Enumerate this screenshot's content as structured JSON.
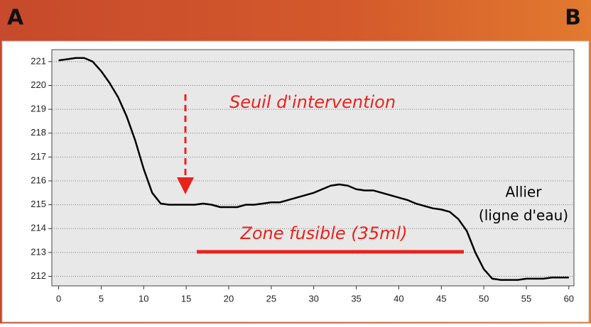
{
  "chart_data": {
    "type": "line",
    "corner_labels": [
      "A",
      "B"
    ],
    "annotations": [
      "Seuil d'intervention",
      "Zone fusible (35ml)",
      "Allier",
      "(ligne d'eau)"
    ],
    "x": [
      0,
      1,
      2,
      3,
      4,
      5,
      6,
      7,
      8,
      9,
      10,
      11,
      12,
      13,
      14,
      15,
      16,
      17,
      18,
      19,
      20,
      21,
      22,
      23,
      24,
      25,
      26,
      27,
      28,
      29,
      30,
      31,
      32,
      33,
      34,
      35,
      36,
      37,
      38,
      39,
      40,
      41,
      42,
      43,
      44,
      45,
      46,
      47,
      48,
      49,
      50,
      51,
      52,
      53,
      54,
      55,
      56,
      57,
      58,
      59,
      60
    ],
    "values": [
      221.05,
      221.1,
      221.15,
      221.15,
      221.0,
      220.6,
      220.1,
      219.5,
      218.7,
      217.7,
      216.5,
      215.5,
      215.05,
      215.0,
      215.0,
      215.0,
      215.0,
      215.05,
      215.0,
      214.9,
      214.9,
      214.9,
      215.0,
      215.0,
      215.05,
      215.1,
      215.1,
      215.2,
      215.3,
      215.4,
      215.5,
      215.65,
      215.8,
      215.85,
      215.8,
      215.65,
      215.6,
      215.6,
      215.5,
      215.4,
      215.3,
      215.2,
      215.05,
      214.95,
      214.85,
      214.8,
      214.7,
      214.4,
      213.9,
      213.0,
      212.3,
      211.9,
      211.85,
      211.85,
      211.85,
      211.9,
      211.9,
      211.9,
      211.95,
      211.95,
      211.95
    ],
    "color": "#000000",
    "xlim": [
      -0.8,
      60.6
    ],
    "xticks": [
      0,
      5,
      10,
      15,
      20,
      25,
      30,
      35,
      40,
      45,
      50,
      55,
      60
    ],
    "ylim": [
      211.6,
      221.5
    ],
    "yticks": [
      212,
      213,
      214,
      215,
      216,
      217,
      218,
      219,
      220,
      221
    ],
    "grid": true
  }
}
